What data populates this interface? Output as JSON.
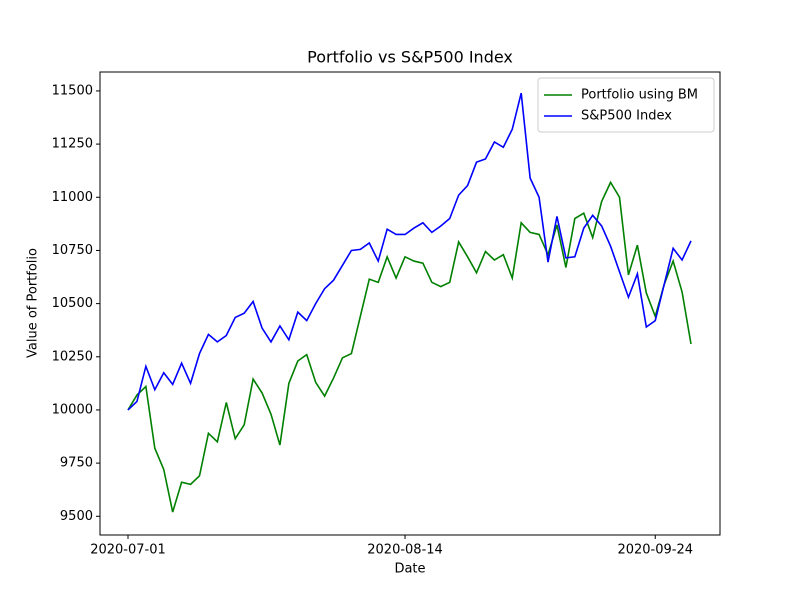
{
  "chart_data": {
    "type": "line",
    "title": "Portfolio vs S&P500 Index",
    "xlabel": "Date",
    "ylabel": "Value of Portfolio",
    "categories": [
      "2020-07-01",
      null,
      null,
      null,
      null,
      null,
      null,
      null,
      null,
      null,
      null,
      null,
      null,
      null,
      null,
      null,
      null,
      null,
      null,
      null,
      null,
      null,
      null,
      null,
      null,
      null,
      null,
      null,
      null,
      null,
      null,
      "2020-08-14",
      null,
      null,
      null,
      null,
      null,
      null,
      null,
      null,
      null,
      null,
      null,
      null,
      null,
      null,
      null,
      null,
      null,
      null,
      null,
      null,
      null,
      null,
      null,
      null,
      null,
      null,
      null,
      "2020-09-24",
      null,
      null,
      null,
      null
    ],
    "series": [
      {
        "name": "Portfolio using BM",
        "color": "#008000",
        "values": [
          10000,
          10070,
          10110,
          9820,
          9720,
          9520,
          9660,
          9650,
          9690,
          9890,
          9850,
          10035,
          9865,
          9930,
          10145,
          10080,
          9980,
          9835,
          10125,
          10230,
          10260,
          10130,
          10065,
          10150,
          10245,
          10265,
          10440,
          10615,
          10600,
          10720,
          10620,
          10720,
          10700,
          10690,
          10600,
          10580,
          10600,
          10790,
          10720,
          10645,
          10745,
          10705,
          10730,
          10620,
          10880,
          10835,
          10825,
          10730,
          10870,
          10670,
          10900,
          10925,
          10810,
          10980,
          11070,
          11000,
          10635,
          10775,
          10550,
          10440,
          10590,
          10700,
          10555,
          10310
        ]
      },
      {
        "name": "S&P500 Index",
        "color": "#0000ff",
        "values": [
          10000,
          10040,
          10205,
          10095,
          10175,
          10120,
          10220,
          10125,
          10265,
          10355,
          10320,
          10350,
          10435,
          10455,
          10510,
          10385,
          10320,
          10395,
          10330,
          10460,
          10420,
          10500,
          10570,
          10610,
          10680,
          10750,
          10755,
          10785,
          10700,
          10850,
          10825,
          10825,
          10855,
          10880,
          10835,
          10865,
          10900,
          11010,
          11055,
          11165,
          11180,
          11260,
          11235,
          11320,
          11490,
          11090,
          11000,
          10695,
          10910,
          10715,
          10720,
          10855,
          10915,
          10865,
          10770,
          10650,
          10530,
          10640,
          10390,
          10420,
          10590,
          10760,
          10705,
          10795
        ]
      }
    ],
    "ylim": [
      9412,
      11589
    ],
    "yticks": [
      9500,
      9750,
      10000,
      10250,
      10500,
      10750,
      11000,
      11250,
      11500
    ],
    "grid": false,
    "legend": "upper right"
  }
}
